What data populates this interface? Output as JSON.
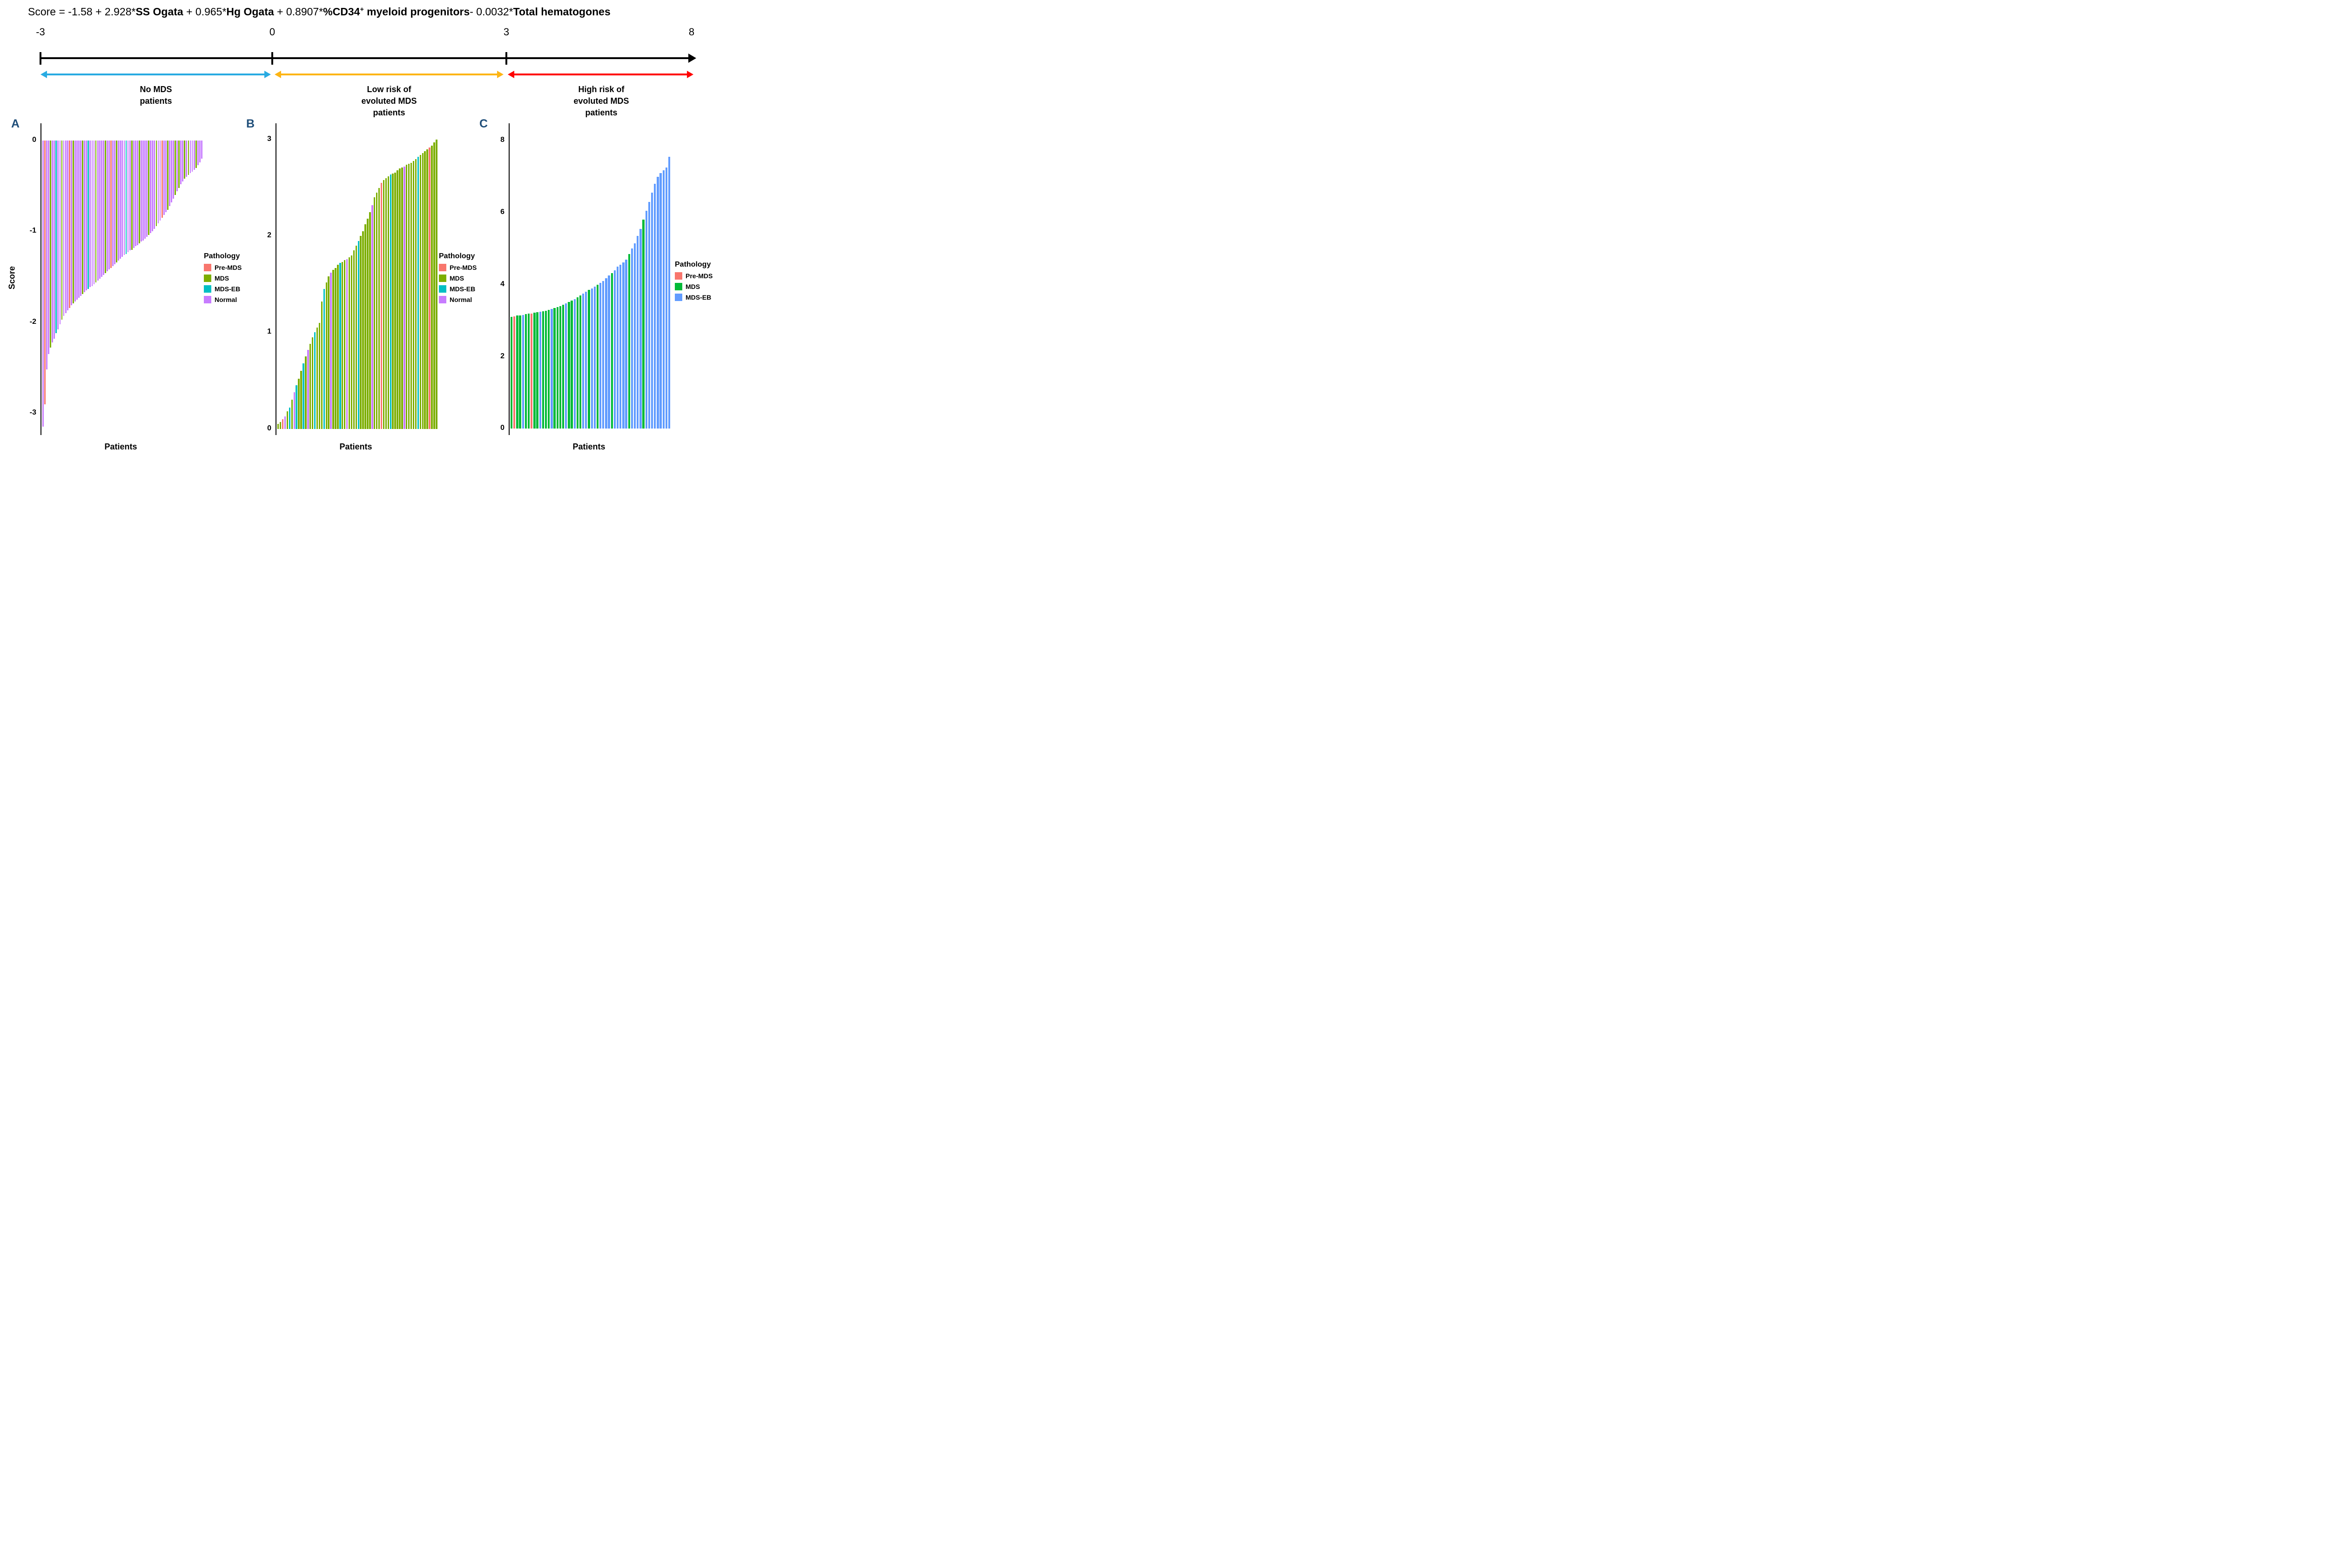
{
  "formula": {
    "segments": [
      {
        "t": "Score = -1.58 + 2.928*",
        "b": false
      },
      {
        "t": "SS Ogata",
        "b": true
      },
      {
        "t": " + 0.965*",
        "b": false
      },
      {
        "t": "Hg Ogata",
        "b": true
      },
      {
        "t": " + 0.8907*",
        "b": false
      },
      {
        "t": "%CD34",
        "b": true
      },
      {
        "t": "+",
        "b": true,
        "sup": true
      },
      {
        "t": " myeloid progenitors",
        "b": true
      },
      {
        "t": "- 0.0032*",
        "b": false
      },
      {
        "t": "Total hematogones",
        "b": true
      }
    ]
  },
  "scale": {
    "axis_ticks": [
      {
        "label": "-3"
      },
      {
        "label": "0"
      },
      {
        "label": "3"
      },
      {
        "label": "8"
      }
    ],
    "segments": [
      {
        "label": "No MDS\npatients",
        "color": "#29ABE2",
        "range": [
          -3,
          0
        ]
      },
      {
        "label": "Low risk of\nevoluted MDS\npatients",
        "color": "#FDB515",
        "range": [
          0,
          3
        ]
      },
      {
        "label": "High risk of\nevoluted MDS\npatients",
        "color": "#FF0000",
        "range": [
          3,
          8
        ]
      }
    ]
  },
  "chart_data": [
    {
      "type": "bar",
      "panel": "A",
      "group_label": "No MDS patients",
      "ylabel": "Score",
      "xlabel": "Patients",
      "ylim": [
        -3.24,
        0.19
      ],
      "yticks": [
        0,
        -1,
        -2,
        -3
      ],
      "legend": {
        "title": "Pathology",
        "items": [
          {
            "label": "Pre-MDS",
            "key": "P"
          },
          {
            "label": "MDS",
            "key": "M"
          },
          {
            "label": "MDS-EB",
            "key": "E"
          },
          {
            "label": "Normal",
            "key": "N"
          }
        ]
      },
      "colors": {
        "P": "#F8766D",
        "M": "#7CAE00",
        "E": "#00BFC4",
        "N": "#C77CFF"
      },
      "values": [
        -3.15,
        -2.9,
        -2.52,
        -2.35,
        -2.28,
        -2.22,
        -2.18,
        -2.12,
        -2.08,
        -2.02,
        -1.97,
        -1.93,
        -1.9,
        -1.87,
        -1.84,
        -1.81,
        -1.79,
        -1.77,
        -1.75,
        -1.73,
        -1.71,
        -1.69,
        -1.67,
        -1.65,
        -1.63,
        -1.61,
        -1.6,
        -1.58,
        -1.56,
        -1.54,
        -1.52,
        -1.5,
        -1.48,
        -1.46,
        -1.44,
        -1.42,
        -1.4,
        -1.38,
        -1.36,
        -1.34,
        -1.32,
        -1.3,
        -1.28,
        -1.26,
        -1.25,
        -1.23,
        -1.21,
        -1.2,
        -1.18,
        -1.16,
        -1.15,
        -1.13,
        -1.11,
        -1.1,
        -1.08,
        -1.06,
        -1.04,
        -1.02,
        -1.0,
        -0.97,
        -0.94,
        -0.91,
        -0.88,
        -0.85,
        -0.82,
        -0.79,
        -0.76,
        -0.72,
        -0.68,
        -0.64,
        -0.6,
        -0.56,
        -0.52,
        -0.48,
        -0.45,
        -0.42,
        -0.4,
        -0.38,
        -0.36,
        -0.34,
        -0.32,
        -0.3,
        -0.27,
        -0.24,
        -0.2
      ],
      "pathology": [
        "N",
        "P",
        "N",
        "N",
        "M",
        "N",
        "N",
        "E",
        "N",
        "N",
        "M",
        "N",
        "N",
        "N",
        "P",
        "N",
        "M",
        "N",
        "N",
        "N",
        "N",
        "M",
        "N",
        "N",
        "E",
        "N",
        "N",
        "N",
        "M",
        "N",
        "N",
        "N",
        "N",
        "M",
        "N",
        "N",
        "P",
        "N",
        "N",
        "M",
        "N",
        "N",
        "N",
        "N",
        "E",
        "N",
        "N",
        "M",
        "N",
        "N",
        "N",
        "M",
        "N",
        "N",
        "N",
        "N",
        "M",
        "N",
        "N",
        "N",
        "M",
        "N",
        "N",
        "P",
        "N",
        "N",
        "M",
        "N",
        "N",
        "N",
        "M",
        "N",
        "M",
        "N",
        "N",
        "M",
        "N",
        "M",
        "N",
        "N",
        "N",
        "M",
        "N",
        "N",
        "N"
      ]
    },
    {
      "type": "bar",
      "panel": "B",
      "group_label": "Low risk of evoluted MDS patients",
      "ylabel": "",
      "xlabel": "Patients",
      "ylim": [
        -0.065,
        3.17
      ],
      "yticks": [
        3,
        2,
        1,
        0
      ],
      "legend": {
        "title": "Pathology",
        "items": [
          {
            "label": "Pre-MDS",
            "key": "P"
          },
          {
            "label": "MDS",
            "key": "M"
          },
          {
            "label": "MDS-EB",
            "key": "E"
          },
          {
            "label": "Normal",
            "key": "N"
          }
        ]
      },
      "colors": {
        "P": "#F8766D",
        "M": "#7CAE00",
        "E": "#00BFC4",
        "N": "#C77CFF"
      },
      "values": [
        0.05,
        0.07,
        0.1,
        0.13,
        0.18,
        0.22,
        0.3,
        0.38,
        0.45,
        0.52,
        0.6,
        0.68,
        0.75,
        0.82,
        0.88,
        0.95,
        1.0,
        1.05,
        1.1,
        1.32,
        1.45,
        1.52,
        1.58,
        1.62,
        1.65,
        1.67,
        1.7,
        1.72,
        1.73,
        1.75,
        1.76,
        1.78,
        1.8,
        1.85,
        1.9,
        1.95,
        2.0,
        2.05,
        2.12,
        2.18,
        2.25,
        2.32,
        2.4,
        2.45,
        2.5,
        2.55,
        2.58,
        2.6,
        2.62,
        2.64,
        2.65,
        2.66,
        2.68,
        2.7,
        2.71,
        2.72,
        2.74,
        2.75,
        2.76,
        2.78,
        2.8,
        2.82,
        2.84,
        2.86,
        2.88,
        2.9,
        2.92,
        2.94,
        2.97,
        3.0
      ],
      "pathology": [
        "M",
        "M",
        "P",
        "N",
        "M",
        "E",
        "M",
        "N",
        "E",
        "M",
        "M",
        "E",
        "M",
        "N",
        "M",
        "M",
        "E",
        "M",
        "M",
        "M",
        "E",
        "M",
        "M",
        "N",
        "M",
        "M",
        "M",
        "E",
        "M",
        "M",
        "N",
        "M",
        "M",
        "M",
        "M",
        "E",
        "M",
        "M",
        "M",
        "M",
        "M",
        "N",
        "M",
        "M",
        "M",
        "P",
        "M",
        "M",
        "M",
        "E",
        "M",
        "M",
        "M",
        "M",
        "M",
        "N",
        "M",
        "M",
        "M",
        "M",
        "M",
        "E",
        "M",
        "M",
        "M",
        "M",
        "P",
        "M",
        "M",
        "M"
      ]
    },
    {
      "type": "bar",
      "panel": "C",
      "group_label": "High risk of evoluted MDS patients",
      "ylabel": "",
      "xlabel": "Patients",
      "ylim": [
        -0.175,
        8.48
      ],
      "yticks": [
        8,
        6,
        4,
        2,
        0
      ],
      "legend": {
        "title": "Pathology",
        "items": [
          {
            "label": "Pre-MDS",
            "key": "P"
          },
          {
            "label": "MDS",
            "key": "G"
          },
          {
            "label": "MDS-EB",
            "key": "B"
          }
        ]
      },
      "colors": {
        "P": "#F8766D",
        "G": "#00BA38",
        "B": "#619CFF"
      },
      "values": [
        3.1,
        3.12,
        3.14,
        3.15,
        3.16,
        3.18,
        3.2,
        3.2,
        3.22,
        3.24,
        3.25,
        3.26,
        3.28,
        3.3,
        3.32,
        3.35,
        3.38,
        3.4,
        3.44,
        3.48,
        3.52,
        3.56,
        3.6,
        3.65,
        3.7,
        3.75,
        3.8,
        3.85,
        3.9,
        3.95,
        4.0,
        4.05,
        4.1,
        4.18,
        4.25,
        4.32,
        4.4,
        4.5,
        4.55,
        4.62,
        4.7,
        4.85,
        5.0,
        5.15,
        5.35,
        5.55,
        5.8,
        6.05,
        6.3,
        6.55,
        6.8,
        7.0,
        7.1,
        7.18,
        7.25,
        7.55
      ],
      "pathology": [
        "G",
        "P",
        "G",
        "G",
        "B",
        "G",
        "G",
        "P",
        "G",
        "G",
        "B",
        "G",
        "G",
        "G",
        "B",
        "G",
        "G",
        "G",
        "G",
        "B",
        "G",
        "G",
        "B",
        "G",
        "G",
        "B",
        "B",
        "G",
        "B",
        "B",
        "G",
        "B",
        "B",
        "B",
        "B",
        "G",
        "B",
        "B",
        "B",
        "B",
        "B",
        "G",
        "B",
        "B",
        "B",
        "B",
        "G",
        "B",
        "B",
        "B",
        "B",
        "B",
        "B",
        "B",
        "B",
        "B"
      ]
    }
  ]
}
